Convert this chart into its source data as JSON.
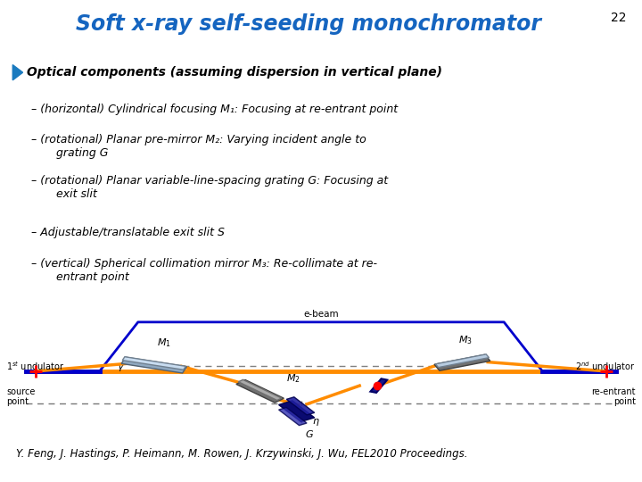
{
  "title": "Soft x-ray self-seeding monochromator",
  "slide_num": "22",
  "title_color": "#1565C0",
  "bg_color": "#FFFFFF",
  "bullet_box_bg": "#FFFFF0",
  "bullet_box_border": "#8B6914",
  "bullet_main": "Optical components (assuming dispersion in vertical plane)",
  "bullets": [
    "(horizontal) Cylindrical focusing M₁: Focusing at re-entrant point",
    "(rotational) Planar pre-mirror M₂: Varying incident angle to\n       grating G",
    "(rotational) Planar variable-line-spacing grating G: Focusing at\n       exit slit",
    "Adjustable/translatable exit slit S",
    "(vertical) Spherical collimation mirror M₃: Re-collimate at re-\n       entrant point"
  ],
  "citation": "Y. Feng, J. Hastings, P. Heimann, M. Rowen, J. Krzywinski, J. Wu, FEL2010 Proceedings.",
  "diagram": {
    "ebeam_color": "#0000CC",
    "xray_color": "#FF8C00",
    "mirror_color_dark": "#708090",
    "mirror_color_light": "#B0C4DE",
    "grating_color": "#1a1a8c",
    "slit_color": "#CC0000",
    "dashed_color": "#777777"
  }
}
